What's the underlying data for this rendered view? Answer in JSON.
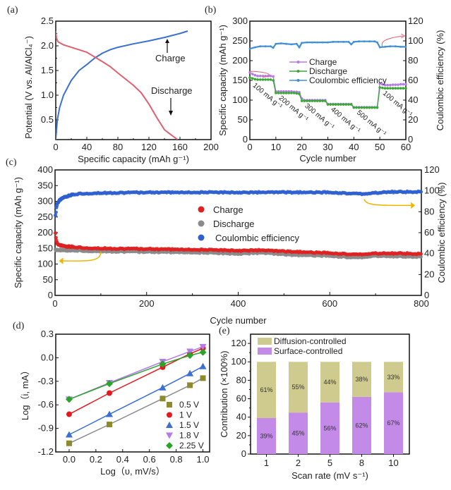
{
  "chart_data": [
    {
      "id": "a",
      "panel_label": "(a)",
      "type": "line",
      "xlabel": "Specific capacity (mAh g⁻¹)",
      "ylabel": "Potential (V vs. Al/AlCl₄⁻)",
      "xlim": [
        0,
        200
      ],
      "ylim": [
        0.1,
        2.5
      ],
      "xticks": [
        "0",
        "40",
        "80",
        "120",
        "160",
        "200"
      ],
      "yticks": [
        "0.5",
        "1.0",
        "1.5",
        "2.0",
        "2.5"
      ],
      "series": [
        {
          "name": "Charge",
          "color": "#3b6fd1",
          "x": [
            0,
            2,
            5,
            10,
            20,
            30,
            40,
            50,
            60,
            70,
            80,
            100,
            120,
            140,
            160,
            170
          ],
          "y": [
            0.1,
            0.5,
            0.75,
            1.0,
            1.3,
            1.5,
            1.62,
            1.75,
            1.85,
            1.92,
            1.97,
            2.04,
            2.1,
            2.17,
            2.25,
            2.3
          ]
        },
        {
          "name": "Discharge",
          "color": "#e06070",
          "x": [
            0,
            1,
            3,
            10,
            20,
            40,
            60,
            70,
            80,
            100,
            110,
            120,
            130,
            140,
            150,
            157
          ],
          "y": [
            2.3,
            2.15,
            2.08,
            2.02,
            1.97,
            1.87,
            1.68,
            1.58,
            1.45,
            1.2,
            1.05,
            0.82,
            0.55,
            0.3,
            0.18,
            0.1
          ]
        }
      ],
      "annotations": [
        {
          "text": "Charge",
          "arrow": "up",
          "x": 130,
          "y": 1.8
        },
        {
          "text": "Discharge",
          "arrow": "down",
          "x": 130,
          "y": 1.0
        }
      ]
    },
    {
      "id": "b",
      "panel_label": "(b)",
      "type": "line",
      "xlabel": "Cycle number",
      "ylabel": "Specific capacity (mAh g⁻¹)",
      "ylabel_right": "Coulombic efficiency (%)",
      "xlim": [
        0,
        60
      ],
      "ylim": [
        0,
        300
      ],
      "ylim_right": [
        0,
        120
      ],
      "xticks": [
        "0",
        "10",
        "20",
        "30",
        "40",
        "50",
        "60"
      ],
      "yticks": [
        "0",
        "50",
        "100",
        "150",
        "200",
        "250",
        "300"
      ],
      "yticks_right": [
        "0",
        "20",
        "40",
        "60",
        "80",
        "100",
        "120"
      ],
      "series": [
        {
          "name": "Charge",
          "color": "#b57be8",
          "axis": "left",
          "x": [
            0,
            1,
            2,
            3,
            4,
            5,
            6,
            7,
            8,
            9,
            10,
            11,
            12,
            13,
            14,
            15,
            16,
            17,
            18,
            19,
            20,
            21,
            22,
            23,
            24,
            25,
            26,
            27,
            28,
            29,
            30,
            31,
            32,
            33,
            34,
            35,
            36,
            37,
            38,
            39,
            40,
            41,
            42,
            43,
            44,
            45,
            46,
            47,
            48,
            49,
            50,
            51,
            52,
            53,
            54,
            55,
            56,
            57,
            58,
            59,
            60
          ],
          "y": [
            170,
            166,
            163,
            161,
            161,
            161,
            161,
            161,
            161,
            160,
            122,
            122,
            122,
            122,
            122,
            122,
            122,
            121,
            121,
            120,
            104,
            100,
            100,
            100,
            100,
            100,
            100,
            100,
            100,
            100,
            90,
            90,
            90,
            90,
            90,
            90,
            90,
            90,
            90,
            90,
            82,
            82,
            82,
            82,
            82,
            82,
            82,
            82,
            82,
            82,
            142,
            140,
            138,
            138,
            138,
            139,
            139,
            139,
            140,
            140,
            140
          ]
        },
        {
          "name": "Discharge",
          "color": "#3aa835",
          "axis": "left",
          "x": [
            0,
            1,
            2,
            3,
            4,
            5,
            6,
            7,
            8,
            9,
            10,
            11,
            12,
            13,
            14,
            15,
            16,
            17,
            18,
            19,
            20,
            21,
            22,
            23,
            24,
            25,
            26,
            27,
            28,
            29,
            30,
            31,
            32,
            33,
            34,
            35,
            36,
            37,
            38,
            39,
            40,
            41,
            42,
            43,
            44,
            45,
            46,
            47,
            48,
            49,
            50,
            51,
            52,
            53,
            54,
            55,
            56,
            57,
            58,
            59,
            60
          ],
          "y": [
            157,
            155,
            153,
            152,
            152,
            152,
            152,
            152,
            152,
            150,
            118,
            118,
            118,
            118,
            118,
            118,
            118,
            118,
            117,
            116,
            98,
            98,
            98,
            98,
            98,
            98,
            98,
            98,
            98,
            98,
            89,
            89,
            89,
            89,
            89,
            89,
            89,
            89,
            89,
            89,
            81,
            81,
            81,
            81,
            81,
            81,
            81,
            81,
            81,
            81,
            132,
            131,
            130,
            130,
            130,
            130,
            130,
            130,
            130,
            130,
            130
          ]
        },
        {
          "name": "Coulombic efficiency",
          "color": "#3f8fd6",
          "axis": "right",
          "x": [
            0,
            2,
            4,
            6,
            8,
            9,
            10,
            12,
            14,
            16,
            18,
            19,
            20,
            22,
            24,
            26,
            28,
            30,
            32,
            34,
            36,
            38,
            39,
            40,
            42,
            44,
            46,
            48,
            49,
            50,
            52,
            54,
            56,
            58,
            60
          ],
          "y": [
            92,
            93.5,
            94.5,
            94.5,
            94.5,
            93,
            97,
            97.5,
            97,
            96.5,
            97,
            93.5,
            98,
            98.5,
            98.5,
            98.5,
            98.5,
            98.5,
            99,
            99,
            99,
            99,
            96.5,
            99,
            99.5,
            99.5,
            99.5,
            99.5,
            98.5,
            93.5,
            94,
            94.5,
            94.5,
            94,
            94
          ]
        }
      ],
      "rate_labels": [
        "100 mA g⁻¹",
        "200 mA g⁻¹",
        "300 mA g⁻¹",
        "400 mA g⁻¹",
        "500 mA g⁻¹",
        "100 mA g⁻¹"
      ],
      "rate_label_x": [
        1,
        11,
        21,
        31,
        41,
        51
      ],
      "legend_position": "center"
    },
    {
      "id": "c",
      "panel_label": "(c)",
      "type": "scatter",
      "xlabel": "Cycle number",
      "ylabel": "Specific capacity (mAh g⁻¹)",
      "ylabel_right": "Coulombic efficiency (%)",
      "xlim": [
        0,
        800
      ],
      "ylim": [
        0,
        400
      ],
      "ylim_right": [
        0,
        120
      ],
      "xticks": [
        "0",
        "200",
        "400",
        "600",
        "800"
      ],
      "yticks": [
        "0",
        "50",
        "100",
        "150",
        "200",
        "250",
        "300",
        "350",
        "400"
      ],
      "yticks_right": [
        "0",
        "20",
        "40",
        "60",
        "80",
        "100",
        "120"
      ],
      "series": [
        {
          "name": "Charge",
          "color": "#e02020",
          "axis": "left",
          "x": [
            1,
            3,
            5,
            10,
            20,
            50,
            100,
            200,
            300,
            400,
            450,
            500,
            600,
            660,
            700,
            760,
            800
          ],
          "y": [
            197,
            175,
            165,
            160,
            157,
            153,
            150,
            148,
            146,
            143,
            144,
            140,
            135,
            130,
            134,
            134,
            132
          ]
        },
        {
          "name": "Discharge",
          "color": "#8a8a8a",
          "axis": "left",
          "x": [
            1,
            3,
            5,
            10,
            20,
            50,
            100,
            200,
            300,
            400,
            450,
            500,
            600,
            660,
            700,
            760,
            800
          ],
          "y": [
            145,
            145,
            145,
            144,
            144,
            143,
            141,
            139,
            137,
            133,
            136,
            130,
            126,
            120,
            126,
            124,
            123
          ]
        },
        {
          "name": "Coulombic efficiency",
          "color": "#2f5fd0",
          "axis": "right",
          "x": [
            1,
            3,
            5,
            10,
            20,
            40,
            60,
            100,
            200,
            300,
            400,
            500,
            600,
            670,
            700,
            730,
            800
          ],
          "y": [
            76,
            84,
            88,
            91,
            94,
            96.5,
            97.5,
            98,
            98.5,
            98.5,
            98.5,
            98.5,
            98.5,
            97,
            98,
            99,
            99
          ]
        }
      ],
      "legend_position": "center"
    },
    {
      "id": "d",
      "panel_label": "(d)",
      "type": "scatter",
      "xlabel": "Log（υ, mV/s）",
      "ylabel": "Log（i, mA）",
      "xlim": [
        -0.1,
        1.05
      ],
      "ylim": [
        -1.2,
        0.3
      ],
      "xticks": [
        "0.0",
        "0.2",
        "0.4",
        "0.6",
        "0.8",
        "1.0"
      ],
      "yticks": [
        "-1.2",
        "-0.9",
        "-0.6",
        "-0.3",
        "0.0",
        "0.3"
      ],
      "x": [
        0.0,
        0.301,
        0.699,
        0.903,
        1.0
      ],
      "series": [
        {
          "name": "0.5 V",
          "color": "#8c8a2a",
          "line_color": "#8a8a8a",
          "marker": "square",
          "values": [
            -1.09,
            -0.85,
            -0.52,
            -0.35,
            -0.26
          ]
        },
        {
          "name": "1 V",
          "color": "#e31a1c",
          "line_color": "#e31a1c",
          "marker": "circle",
          "values": [
            -0.72,
            -0.45,
            -0.12,
            0.05,
            0.12
          ]
        },
        {
          "name": "1.5 V",
          "color": "#3b6fd1",
          "line_color": "#3b6fd1",
          "marker": "triangle-up",
          "values": [
            -0.98,
            -0.72,
            -0.38,
            -0.2,
            -0.11
          ]
        },
        {
          "name": "1.8 V",
          "color": "#b57be8",
          "line_color": "#b57be8",
          "marker": "triangle-down",
          "values": [
            -0.53,
            -0.32,
            -0.05,
            0.08,
            0.14
          ]
        },
        {
          "name": "2.25 V",
          "color": "#2aa52a",
          "line_color": "#2aa52a",
          "marker": "diamond",
          "values": [
            -0.53,
            -0.33,
            -0.08,
            0.03,
            0.07
          ]
        }
      ],
      "legend_position": "bottom-right"
    },
    {
      "id": "e",
      "panel_label": "(e)",
      "type": "bar",
      "stacked": true,
      "xlabel": "Scan rate (mV s⁻¹)",
      "ylabel": "Contribution (×100%)",
      "ylim": [
        0,
        130
      ],
      "yticks": [
        "0",
        "20",
        "40",
        "60",
        "80",
        "100",
        "120"
      ],
      "categories": [
        "1",
        "2",
        "5",
        "8",
        "10"
      ],
      "series": [
        {
          "name": "Surface-controlled",
          "color": "#c38ae8",
          "values": [
            39,
            45,
            56,
            62,
            67
          ],
          "labels": [
            "39%",
            "45%",
            "56%",
            "62%",
            "67%"
          ]
        },
        {
          "name": "Diffusion-controlled",
          "color": "#cfcb8e",
          "values": [
            61,
            55,
            44,
            38,
            33
          ],
          "labels": [
            "61%",
            "55%",
            "44%",
            "38%",
            "33%"
          ]
        }
      ],
      "legend_position": "top-left"
    }
  ]
}
